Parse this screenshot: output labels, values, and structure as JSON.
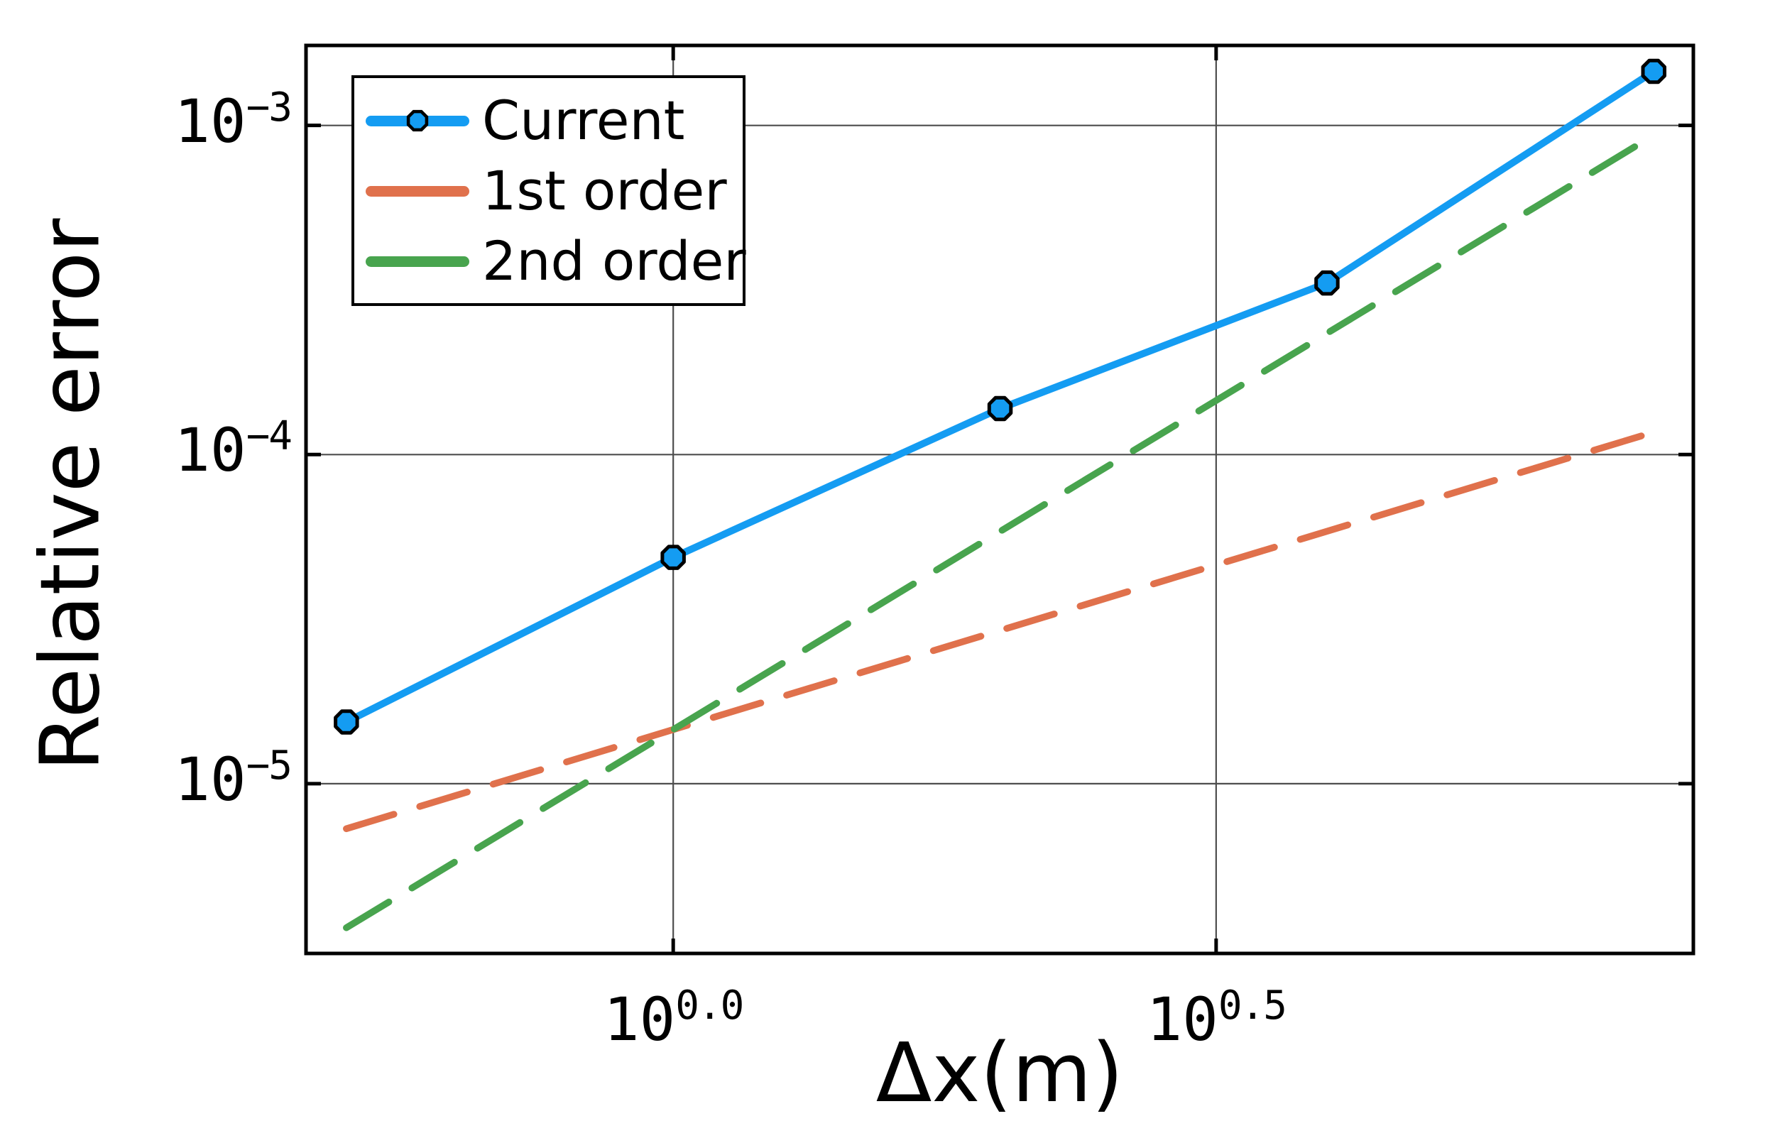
{
  "figure": {
    "background": "#ffffff",
    "spine_color": "#000000",
    "grid_color": "#4d4d4d",
    "text_color": "#000000"
  },
  "chart_data": {
    "type": "line",
    "title": "",
    "xlabel": "Δx(m)",
    "ylabel": "Relative error",
    "xscale": "log10",
    "yscale": "log10",
    "grid": true,
    "legend_position": "top-left",
    "xlim": [
      0.459,
      8.7
    ],
    "ylim": [
      3.05e-06,
      0.00175
    ],
    "x_ticks": [
      {
        "value": 1.0,
        "base": "10",
        "exp": "0.0"
      },
      {
        "value": 3.16228,
        "base": "10",
        "exp": "0.5"
      }
    ],
    "y_ticks": [
      {
        "value": 0.001,
        "base": "10",
        "exp": "−3"
      },
      {
        "value": 0.0001,
        "base": "10",
        "exp": "−4"
      },
      {
        "value": 1e-05,
        "base": "10",
        "exp": "−5"
      }
    ],
    "series": [
      {
        "name": "Current",
        "color": "#149CF2",
        "linestyle": "solid",
        "marker": "octagon",
        "marker_stroke": "#000000",
        "x": [
          0.5,
          1.0,
          2.0,
          4.0,
          8.0
        ],
        "y": [
          1.54e-05,
          4.87e-05,
          0.000138,
          0.000332,
          0.00146
        ]
      },
      {
        "name": "1st order",
        "color": "#E0714C",
        "linestyle": "dashed",
        "marker": "none",
        "x": [
          0.5,
          8.0
        ],
        "y": [
          7.3e-06,
          0.000117
        ]
      },
      {
        "name": "2nd order",
        "color": "#48A44E",
        "linestyle": "dashed",
        "marker": "none",
        "x": [
          0.5,
          8.0
        ],
        "y": [
          3.65e-06,
          0.000934
        ]
      }
    ]
  }
}
